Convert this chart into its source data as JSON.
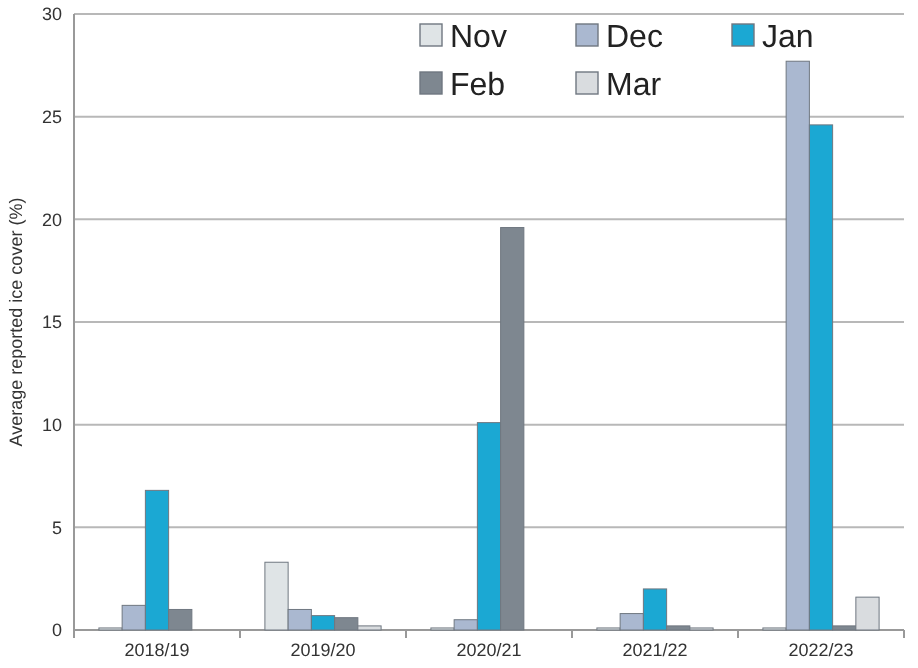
{
  "chart_data": {
    "type": "bar",
    "ylabel": "Average reported ice cover (%)",
    "categories": [
      "2018/19",
      "2019/20",
      "2020/21",
      "2021/22",
      "2022/23"
    ],
    "series": [
      {
        "name": "Nov",
        "color": "#dfe4e6",
        "values": [
          0.1,
          3.3,
          0.1,
          0.1,
          0.1
        ]
      },
      {
        "name": "Dec",
        "color": "#aab8d0",
        "values": [
          1.2,
          1.0,
          0.5,
          0.8,
          27.7
        ]
      },
      {
        "name": "Jan",
        "color": "#1ba8d3",
        "values": [
          6.8,
          0.7,
          10.1,
          2.0,
          24.6
        ]
      },
      {
        "name": "Feb",
        "color": "#7e8790",
        "values": [
          1.0,
          0.6,
          19.6,
          0.2,
          0.2
        ]
      },
      {
        "name": "Mar",
        "color": "#d9dcdf",
        "values": [
          0,
          0.2,
          0,
          0.1,
          1.6
        ]
      }
    ],
    "ylim": [
      0,
      30
    ],
    "yticks": [
      0,
      5,
      10,
      15,
      20,
      25,
      30
    ],
    "grid": "y",
    "legend": "top"
  }
}
